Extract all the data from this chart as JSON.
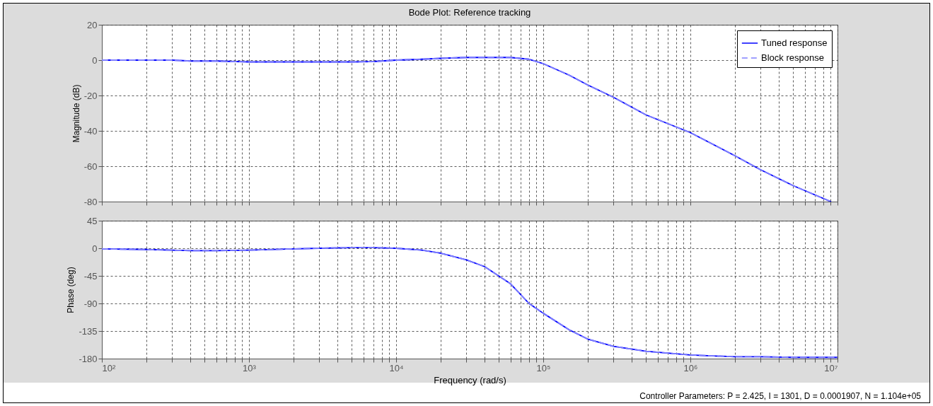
{
  "chart_data": [
    {
      "type": "line",
      "title": "Bode Plot: Reference tracking",
      "ylabel": "Magnitude (dB)",
      "x": [
        100,
        200,
        300,
        400,
        600,
        1000,
        2000,
        3000,
        5000,
        7000,
        10000,
        15000,
        20000,
        30000,
        40000,
        60000,
        80000,
        100000,
        150000,
        200000,
        300000,
        500000,
        1000000,
        2000000,
        3000000,
        5000000,
        9000000
      ],
      "series": [
        {
          "name": "Tuned response",
          "color": "#0000ff",
          "line_style": "solid",
          "values": [
            0,
            0,
            0,
            -0.5,
            -0.5,
            -1,
            -1,
            -1,
            -1,
            -0.8,
            0,
            0.5,
            1,
            1.5,
            1.5,
            1.5,
            0.5,
            -2,
            -8.5,
            -14,
            -21,
            -31,
            -41,
            -54,
            -62,
            -71,
            -80
          ]
        },
        {
          "name": "Block response",
          "color": "#8080ff",
          "line_style": "dashed",
          "values": [
            0,
            0,
            0,
            -0.5,
            -0.5,
            -1,
            -1,
            -1,
            -1,
            -0.8,
            0,
            0.5,
            1,
            1.5,
            1.5,
            1.5,
            0.5,
            -2,
            -8.5,
            -14,
            -21,
            -31,
            -41,
            -54,
            -62,
            -71,
            -80
          ]
        }
      ],
      "log": "x",
      "xlim": [
        100,
        10000000
      ],
      "ylim": [
        -80,
        20
      ],
      "yticks": [
        -80,
        -60,
        -40,
        -20,
        0,
        20
      ],
      "xticks": [
        {
          "value": 100,
          "label": null
        },
        {
          "value": 200,
          "label": null
        },
        {
          "value": 300,
          "label": null
        },
        {
          "value": 400,
          "label": null
        },
        {
          "value": 500,
          "label": null
        },
        {
          "value": 600,
          "label": null
        },
        {
          "value": 700,
          "label": null
        },
        {
          "value": 800,
          "label": null
        },
        {
          "value": 900,
          "label": null
        },
        {
          "value": 1000,
          "label": null
        },
        {
          "value": 2000,
          "label": null
        },
        {
          "value": 3000,
          "label": null
        },
        {
          "value": 4000,
          "label": null
        },
        {
          "value": 5000,
          "label": null
        },
        {
          "value": 6000,
          "label": null
        },
        {
          "value": 7000,
          "label": null
        },
        {
          "value": 8000,
          "label": null
        },
        {
          "value": 9000,
          "label": null
        },
        {
          "value": 10000,
          "label": null
        },
        {
          "value": 20000,
          "label": null
        },
        {
          "value": 30000,
          "label": null
        },
        {
          "value": 40000,
          "label": null
        },
        {
          "value": 50000,
          "label": null
        },
        {
          "value": 60000,
          "label": null
        },
        {
          "value": 70000,
          "label": null
        },
        {
          "value": 80000,
          "label": null
        },
        {
          "value": 90000,
          "label": null
        },
        {
          "value": 100000,
          "label": null
        },
        {
          "value": 200000,
          "label": null
        },
        {
          "value": 300000,
          "label": null
        },
        {
          "value": 400000,
          "label": null
        },
        {
          "value": 500000,
          "label": null
        },
        {
          "value": 600000,
          "label": null
        },
        {
          "value": 700000,
          "label": null
        },
        {
          "value": 800000,
          "label": null
        },
        {
          "value": 900000,
          "label": null
        },
        {
          "value": 1000000,
          "label": null
        },
        {
          "value": 2000000,
          "label": null
        },
        {
          "value": 3000000,
          "label": null
        },
        {
          "value": 4000000,
          "label": null
        },
        {
          "value": 5000000,
          "label": null
        },
        {
          "value": 6000000,
          "label": null
        },
        {
          "value": 7000000,
          "label": null
        },
        {
          "value": 8000000,
          "label": null
        },
        {
          "value": 9000000,
          "label": null
        },
        {
          "value": 10000000,
          "label": null
        }
      ],
      "tick_labels": "y",
      "grid": true,
      "legend": "top right"
    },
    {
      "type": "line",
      "ylabel": "Phase (deg)",
      "xlabel": "Frequency  (rad/s)",
      "x": [
        100,
        200,
        300,
        400,
        600,
        1000,
        2000,
        3000,
        5000,
        7000,
        10000,
        15000,
        20000,
        30000,
        40000,
        60000,
        80000,
        100000,
        150000,
        200000,
        300000,
        500000,
        1000000,
        2000000,
        3000000,
        5000000,
        10000000
      ],
      "series": [
        {
          "color": "#0000ff",
          "line_style": "solid",
          "values": [
            -1,
            -2,
            -3,
            -4,
            -4,
            -3,
            -1,
            0,
            1,
            1,
            0,
            -3,
            -8,
            -19,
            -30,
            -58,
            -90,
            -106,
            -133,
            -148,
            -160,
            -168,
            -174,
            -177,
            -177,
            -178,
            -178
          ]
        },
        {
          "color": "#8080ff",
          "line_style": "dashed",
          "values": [
            -1,
            -2,
            -3,
            -4,
            -4,
            -3,
            -1,
            0,
            1,
            1,
            0,
            -3,
            -8,
            -19,
            -30,
            -58,
            -90,
            -106,
            -133,
            -148,
            -160,
            -168,
            -174,
            -177,
            -177,
            -178,
            -178
          ]
        }
      ],
      "log": "x",
      "xlim": [
        100,
        10000000
      ],
      "ylim": [
        -180,
        45
      ],
      "yticks": [
        -180,
        -135,
        -90,
        -45,
        0,
        45
      ],
      "xticks": [
        {
          "value": 100,
          "label": "10²"
        },
        {
          "value": 200,
          "label": null
        },
        {
          "value": 300,
          "label": null
        },
        {
          "value": 400,
          "label": null
        },
        {
          "value": 500,
          "label": null
        },
        {
          "value": 600,
          "label": null
        },
        {
          "value": 700,
          "label": null
        },
        {
          "value": 800,
          "label": null
        },
        {
          "value": 900,
          "label": null
        },
        {
          "value": 1000,
          "label": "10³"
        },
        {
          "value": 2000,
          "label": null
        },
        {
          "value": 3000,
          "label": null
        },
        {
          "value": 4000,
          "label": null
        },
        {
          "value": 5000,
          "label": null
        },
        {
          "value": 6000,
          "label": null
        },
        {
          "value": 7000,
          "label": null
        },
        {
          "value": 8000,
          "label": null
        },
        {
          "value": 9000,
          "label": null
        },
        {
          "value": 10000,
          "label": "10⁴"
        },
        {
          "value": 20000,
          "label": null
        },
        {
          "value": 30000,
          "label": null
        },
        {
          "value": 40000,
          "label": null
        },
        {
          "value": 50000,
          "label": null
        },
        {
          "value": 60000,
          "label": null
        },
        {
          "value": 70000,
          "label": null
        },
        {
          "value": 80000,
          "label": null
        },
        {
          "value": 90000,
          "label": null
        },
        {
          "value": 100000,
          "label": "10⁵"
        },
        {
          "value": 200000,
          "label": null
        },
        {
          "value": 300000,
          "label": null
        },
        {
          "value": 400000,
          "label": null
        },
        {
          "value": 500000,
          "label": null
        },
        {
          "value": 600000,
          "label": null
        },
        {
          "value": 700000,
          "label": null
        },
        {
          "value": 800000,
          "label": null
        },
        {
          "value": 900000,
          "label": null
        },
        {
          "value": 1000000,
          "label": "10⁶"
        },
        {
          "value": 2000000,
          "label": null
        },
        {
          "value": 3000000,
          "label": null
        },
        {
          "value": 4000000,
          "label": null
        },
        {
          "value": 5000000,
          "label": null
        },
        {
          "value": 6000000,
          "label": null
        },
        {
          "value": 7000000,
          "label": null
        },
        {
          "value": 8000000,
          "label": null
        },
        {
          "value": 9000000,
          "label": null
        },
        {
          "value": 10000000,
          "label": "10⁷"
        }
      ],
      "grid": true,
      "annotations": [
        "Controller Parameters: P = 2.425, I = 1301, D = 0.0001907, N = 1.104e+05"
      ]
    }
  ]
}
